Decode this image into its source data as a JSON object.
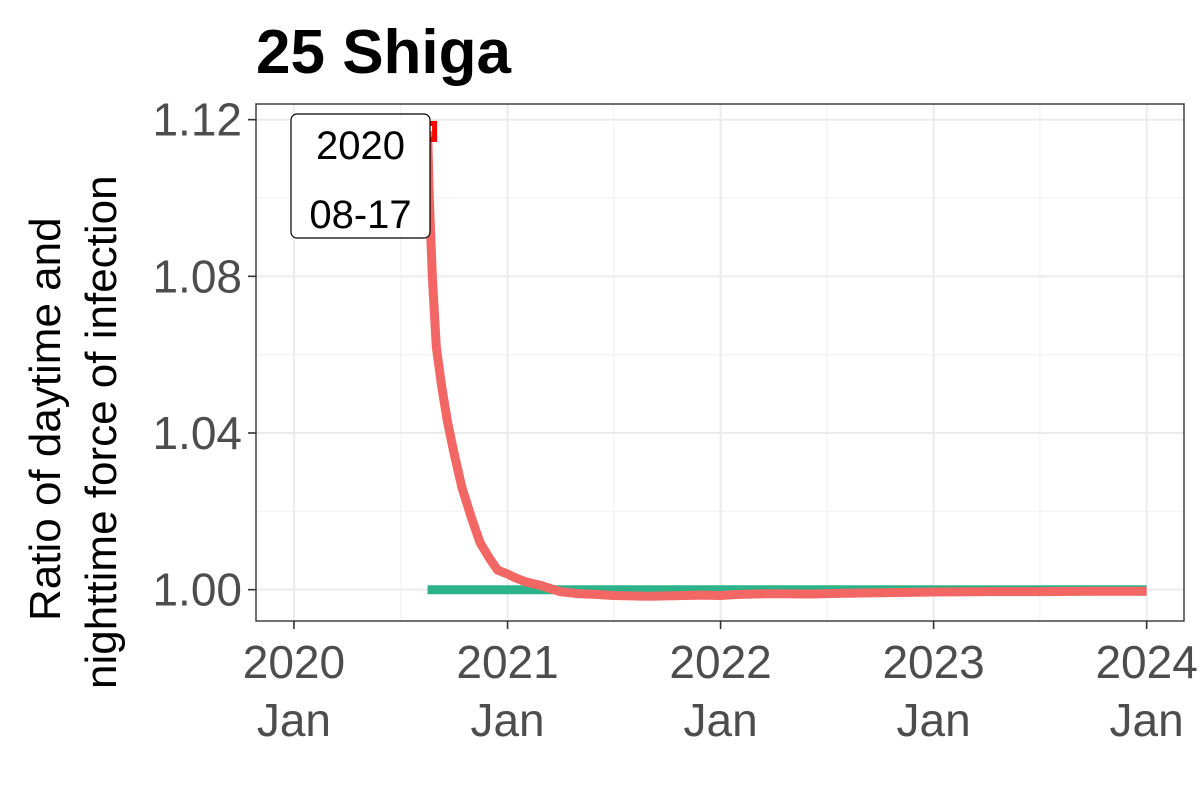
{
  "chart_data": {
    "type": "line",
    "title": "25 Shiga",
    "ylabel_lines": [
      "Ratio of daytime and",
      "nighttime force of infection"
    ],
    "xlabel": "",
    "x_axis": {
      "type": "date",
      "range": [
        "2019-10-28",
        "2024-03-05"
      ],
      "ticks": [
        {
          "date": "2020-01-01",
          "line1": "2020",
          "line2": "Jan"
        },
        {
          "date": "2021-01-01",
          "line1": "2021",
          "line2": "Jan"
        },
        {
          "date": "2022-01-01",
          "line1": "2022",
          "line2": "Jan"
        },
        {
          "date": "2023-01-01",
          "line1": "2023",
          "line2": "Jan"
        },
        {
          "date": "2024-01-01",
          "line1": "2024",
          "line2": "Jan"
        }
      ]
    },
    "y_axis": {
      "range": [
        0.992,
        1.124
      ],
      "ticks": [
        {
          "value": 1.0,
          "label": "1.00"
        },
        {
          "value": 1.04,
          "label": "1.04"
        },
        {
          "value": 1.08,
          "label": "1.08"
        },
        {
          "value": 1.12,
          "label": "1.12"
        }
      ]
    },
    "grid": true,
    "legend": "none",
    "series": [
      {
        "color": "#2db38a",
        "x": [
          "2020-08-17",
          "2024-01-01"
        ],
        "y": [
          1.0,
          1.0
        ]
      },
      {
        "color": "#f26663",
        "x": [
          "2020-08-17",
          "2020-08-20",
          "2020-08-25",
          "2020-09-01",
          "2020-09-10",
          "2020-09-20",
          "2020-10-01",
          "2020-10-15",
          "2020-11-01",
          "2020-11-15",
          "2020-12-01",
          "2020-12-15",
          "2021-01-01",
          "2021-01-15",
          "2021-02-01",
          "2021-03-01",
          "2021-04-01",
          "2021-05-01",
          "2021-06-01",
          "2021-07-01",
          "2021-08-01",
          "2021-09-01",
          "2021-10-01",
          "2021-11-01",
          "2021-12-01",
          "2022-01-01",
          "2022-02-01",
          "2022-03-01",
          "2022-04-01",
          "2022-06-01",
          "2022-08-01",
          "2022-10-01",
          "2023-01-01",
          "2023-04-01",
          "2023-07-01",
          "2023-10-01",
          "2024-01-01"
        ],
        "y": [
          1.117,
          1.1,
          1.08,
          1.062,
          1.052,
          1.043,
          1.035,
          1.026,
          1.018,
          1.012,
          1.008,
          1.005,
          1.004,
          1.003,
          1.002,
          1.001,
          0.9995,
          0.999,
          0.9988,
          0.9985,
          0.9984,
          0.9983,
          0.9984,
          0.9985,
          0.9986,
          0.9985,
          0.9988,
          0.9989,
          0.999,
          0.9989,
          0.9991,
          0.9992,
          0.9994,
          0.9995,
          0.9995,
          0.9996,
          0.9996
        ]
      }
    ],
    "marker": {
      "x": "2020-08-17",
      "y": 1.117,
      "color": "#ff0000"
    },
    "annotation": {
      "line1": "2020",
      "line2": "08-17"
    }
  }
}
